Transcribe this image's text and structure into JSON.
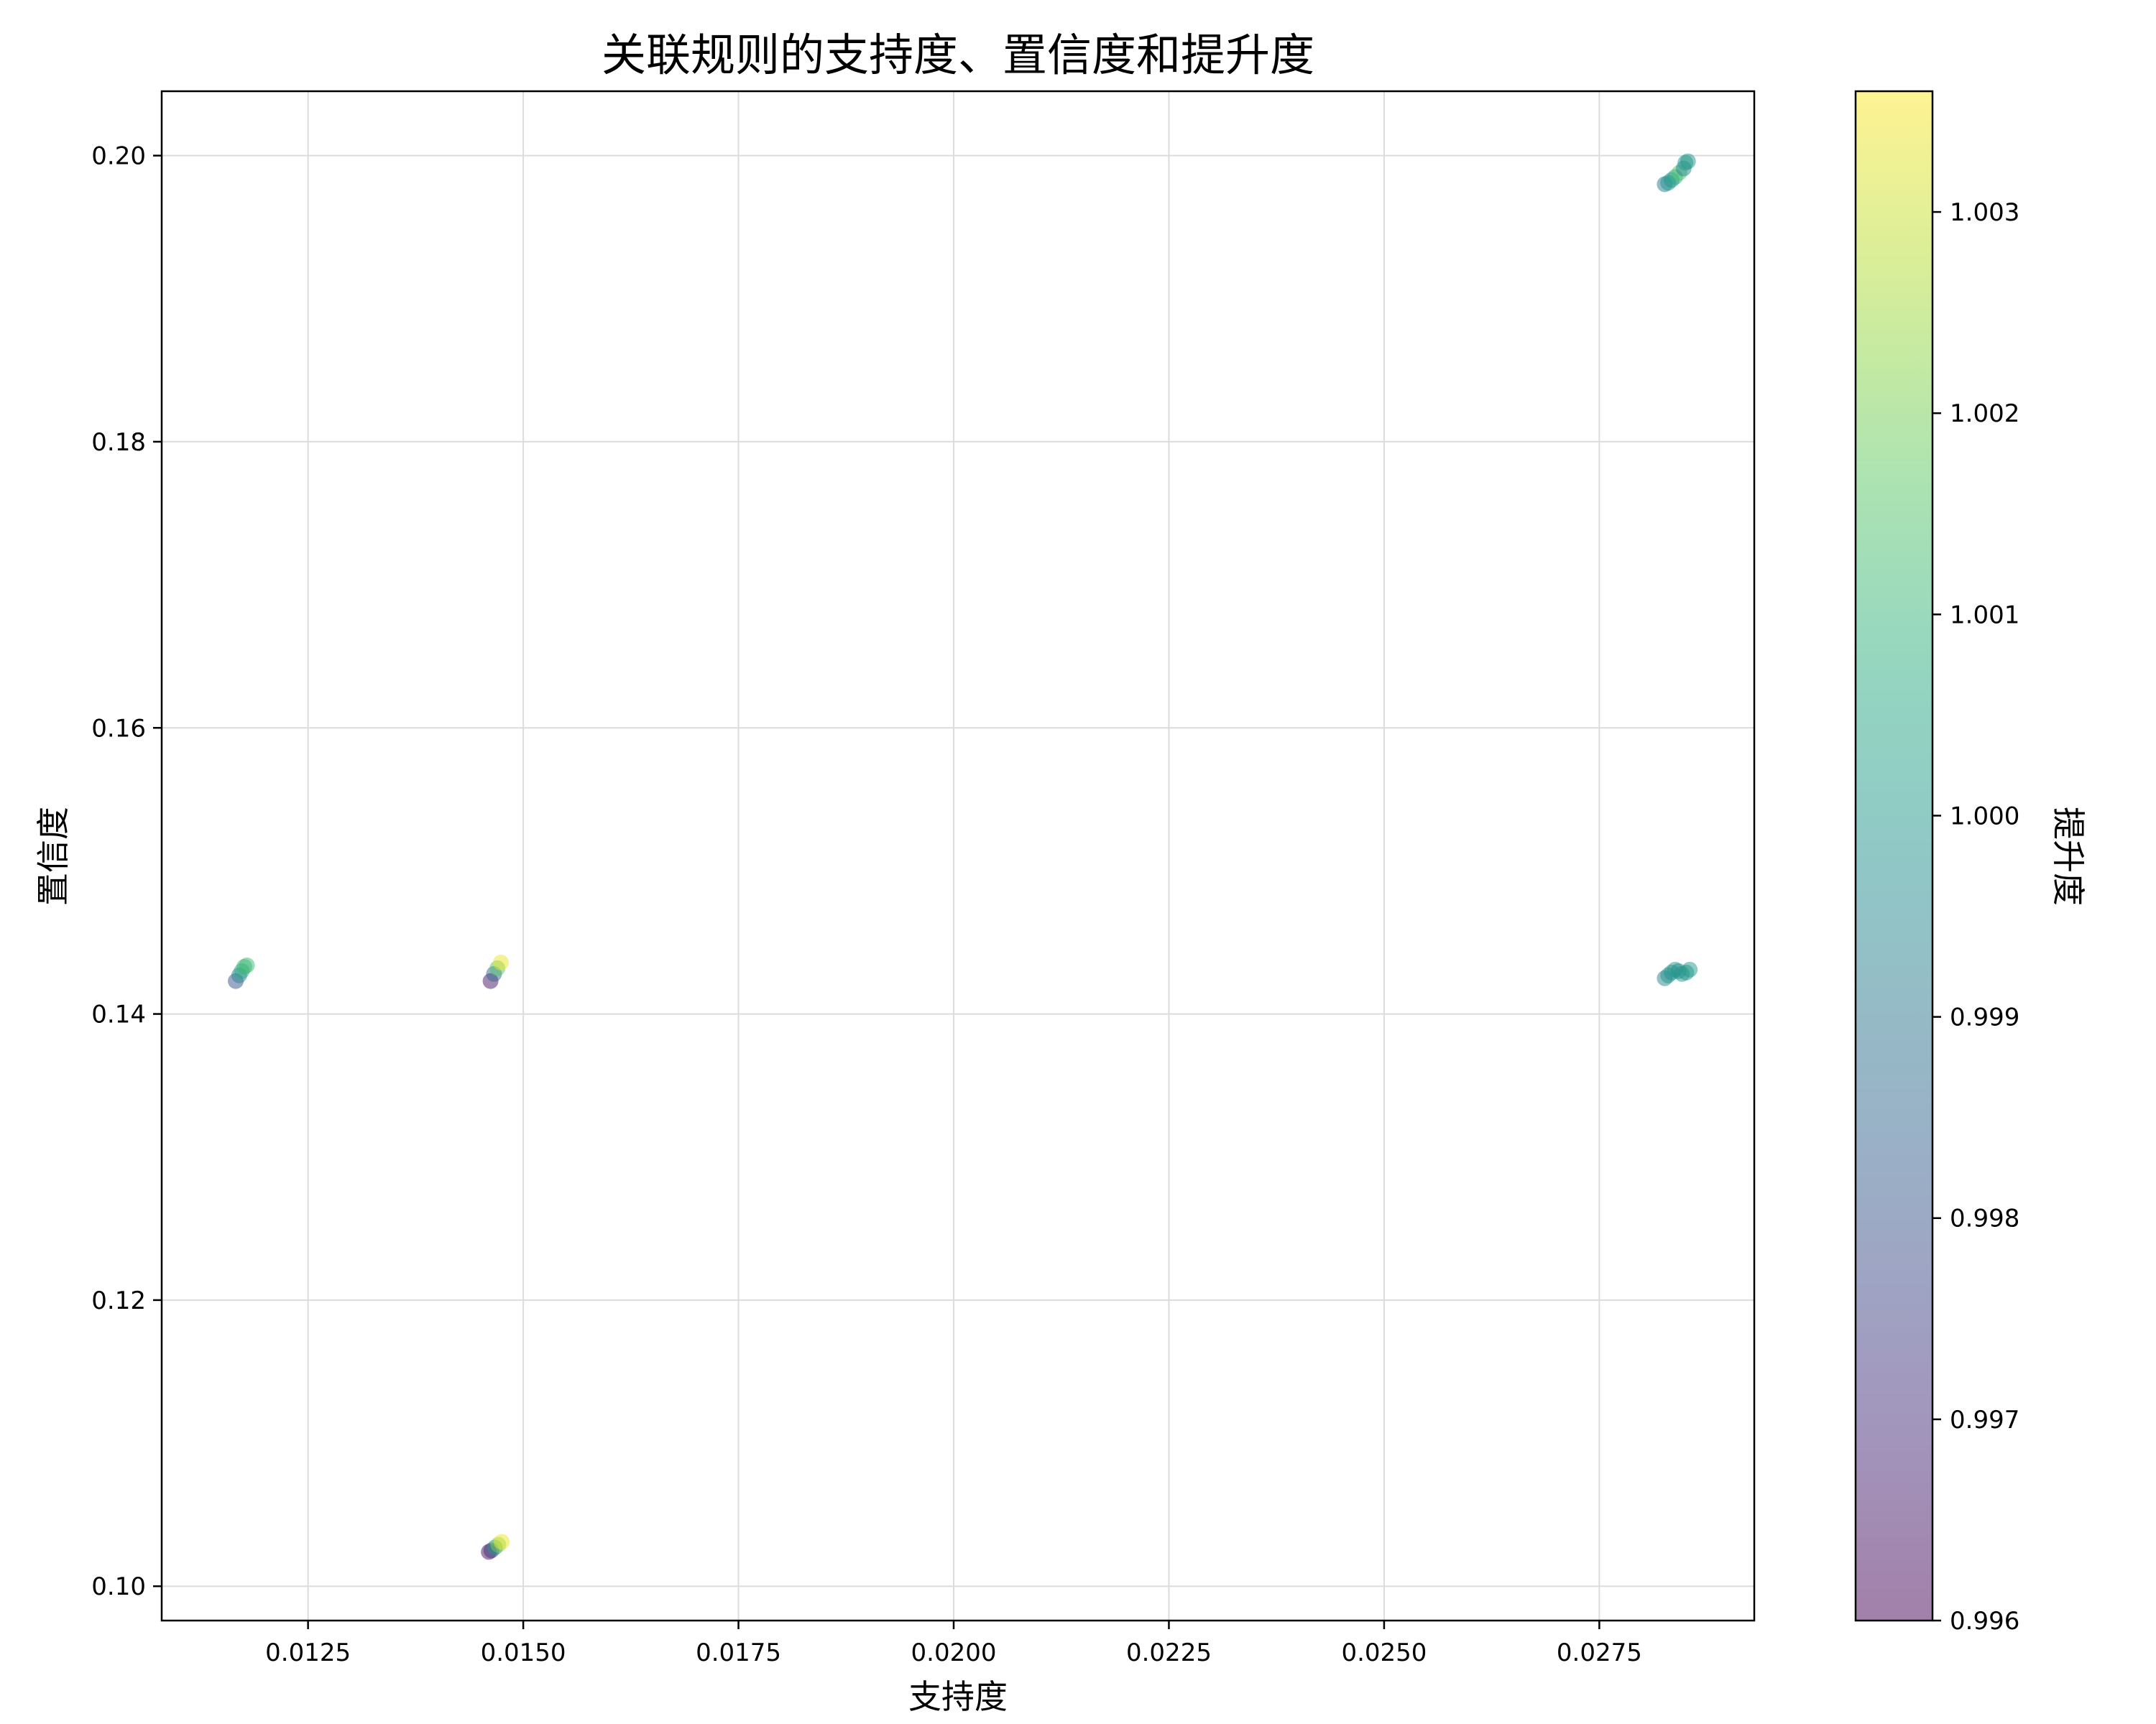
{
  "chart_data": {
    "type": "scatter",
    "title": "关联规则的支持度、置信度和提升度",
    "xlabel": "支持度",
    "ylabel": "置信度",
    "colorbar_label": "提升度",
    "xlim": [
      0.0108,
      0.0293
    ],
    "ylim": [
      0.0976,
      0.2045
    ],
    "xticks": [
      0.0125,
      0.015,
      0.0175,
      0.02,
      0.0225,
      0.025,
      0.0275
    ],
    "xtick_labels": [
      "0.0125",
      "0.0150",
      "0.0175",
      "0.0200",
      "0.0225",
      "0.0250",
      "0.0275"
    ],
    "yticks": [
      0.1,
      0.12,
      0.14,
      0.16,
      0.18,
      0.2
    ],
    "ytick_labels": [
      "0.10",
      "0.12",
      "0.14",
      "0.16",
      "0.18",
      "0.20"
    ],
    "clim": [
      0.996,
      1.0036
    ],
    "cticks": [
      0.996,
      0.997,
      0.998,
      0.999,
      1.0,
      1.001,
      1.002,
      1.003
    ],
    "ctick_labels": [
      "0.996",
      "0.997",
      "0.998",
      "0.999",
      "1.000",
      "1.001",
      "1.002",
      "1.003"
    ],
    "colormap": "viridis",
    "marker_alpha": 0.5,
    "grid": true,
    "points": [
      {
        "x": 0.01166,
        "y": 0.1423,
        "c": 0.998
      },
      {
        "x": 0.0117,
        "y": 0.1427,
        "c": 0.9995
      },
      {
        "x": 0.01173,
        "y": 0.143,
        "c": 1.0005
      },
      {
        "x": 0.01176,
        "y": 0.1433,
        "c": 1.001
      },
      {
        "x": 0.01179,
        "y": 0.1434,
        "c": 1.0012
      },
      {
        "x": 0.01462,
        "y": 0.1423,
        "c": 0.9965
      },
      {
        "x": 0.01466,
        "y": 0.1428,
        "c": 0.9985
      },
      {
        "x": 0.0147,
        "y": 0.1432,
        "c": 1.0015
      },
      {
        "x": 0.01474,
        "y": 0.1436,
        "c": 1.0034
      },
      {
        "x": 0.0146,
        "y": 0.1024,
        "c": 0.9963
      },
      {
        "x": 0.01463,
        "y": 0.1025,
        "c": 0.997
      },
      {
        "x": 0.01467,
        "y": 0.1027,
        "c": 1.0
      },
      {
        "x": 0.01471,
        "y": 0.1029,
        "c": 1.002
      },
      {
        "x": 0.01475,
        "y": 0.1031,
        "c": 1.0034
      },
      {
        "x": 0.02826,
        "y": 0.198,
        "c": 0.9992
      },
      {
        "x": 0.0283,
        "y": 0.1981,
        "c": 0.9998
      },
      {
        "x": 0.02834,
        "y": 0.1983,
        "c": 1.0
      },
      {
        "x": 0.02838,
        "y": 0.1985,
        "c": 1.0006
      },
      {
        "x": 0.02843,
        "y": 0.1988,
        "c": 1.0015
      },
      {
        "x": 0.02848,
        "y": 0.1991,
        "c": 0.9995
      },
      {
        "x": 0.0285,
        "y": 0.1995,
        "c": 1.0002
      },
      {
        "x": 0.02853,
        "y": 0.1996,
        "c": 1.0
      },
      {
        "x": 0.02826,
        "y": 0.1425,
        "c": 0.9994
      },
      {
        "x": 0.0283,
        "y": 0.1427,
        "c": 1.0
      },
      {
        "x": 0.02834,
        "y": 0.1429,
        "c": 0.9998
      },
      {
        "x": 0.02838,
        "y": 0.1431,
        "c": 1.0002
      },
      {
        "x": 0.02842,
        "y": 0.143,
        "c": 0.9997
      },
      {
        "x": 0.02846,
        "y": 0.1428,
        "c": 1.0
      },
      {
        "x": 0.02851,
        "y": 0.1429,
        "c": 0.9999
      },
      {
        "x": 0.02855,
        "y": 0.1431,
        "c": 1.0001
      }
    ]
  }
}
